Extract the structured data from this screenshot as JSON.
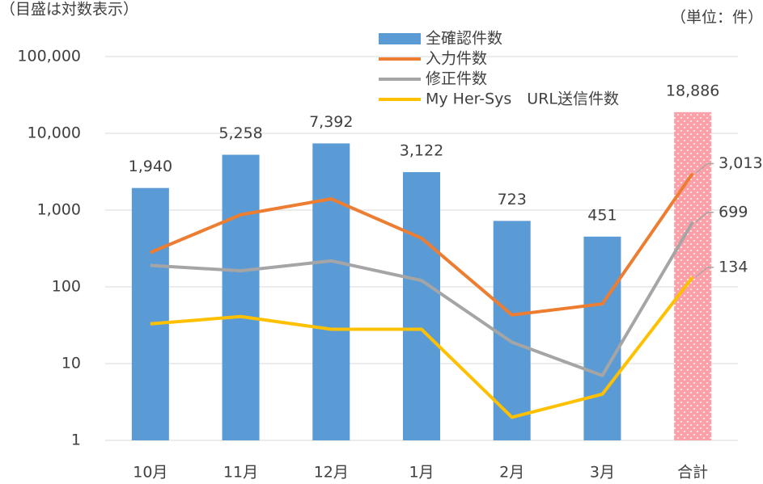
{
  "chart_data": {
    "type": "bar",
    "note": "（目盛は対数表示）",
    "unit": "（単位：件）",
    "categories": [
      "10月",
      "11月",
      "12月",
      "1月",
      "2月",
      "3月",
      "合計"
    ],
    "log_scale": true,
    "grid": true,
    "ylim": [
      1,
      100000
    ],
    "yticks": [
      1,
      10,
      100,
      {
        "value": 1000,
        "label": "1,000"
      },
      {
        "value": 10000,
        "label": "10,000"
      },
      {
        "value": 100000,
        "label": "100,000"
      }
    ],
    "series": [
      {
        "name": "全確認件数",
        "type": "bar",
        "color": "#5b9bd5",
        "colors": [
          "#5b9bd5",
          "#5b9bd5",
          "#5b9bd5",
          "#5b9bd5",
          "#5b9bd5",
          "#5b9bd5",
          "#ff9fa8"
        ],
        "values": [
          1940,
          5258,
          7392,
          3122,
          723,
          451,
          18886
        ],
        "value_labels": [
          "1,940",
          "5,258",
          "7,392",
          "3,122",
          "723",
          "451",
          "18,886"
        ]
      },
      {
        "name": "入力件数",
        "type": "line",
        "color": "#ed7d31",
        "values": [
          280,
          870,
          1400,
          430,
          43,
          60,
          3013
        ],
        "value_labels": [
          null,
          null,
          null,
          null,
          null,
          null,
          "3,013"
        ]
      },
      {
        "name": "修正件数",
        "type": "line",
        "color": "#a5a5a5",
        "values": [
          190,
          162,
          218,
          121,
          19,
          7,
          699
        ],
        "value_labels": [
          null,
          null,
          null,
          null,
          null,
          null,
          "699"
        ]
      },
      {
        "name": "My Her-Sys　URL送信件数",
        "type": "line",
        "color": "#ffc000",
        "values": [
          33,
          41,
          28,
          28,
          2,
          4,
          134
        ],
        "value_labels": [
          null,
          null,
          null,
          null,
          null,
          null,
          "134"
        ]
      }
    ]
  }
}
